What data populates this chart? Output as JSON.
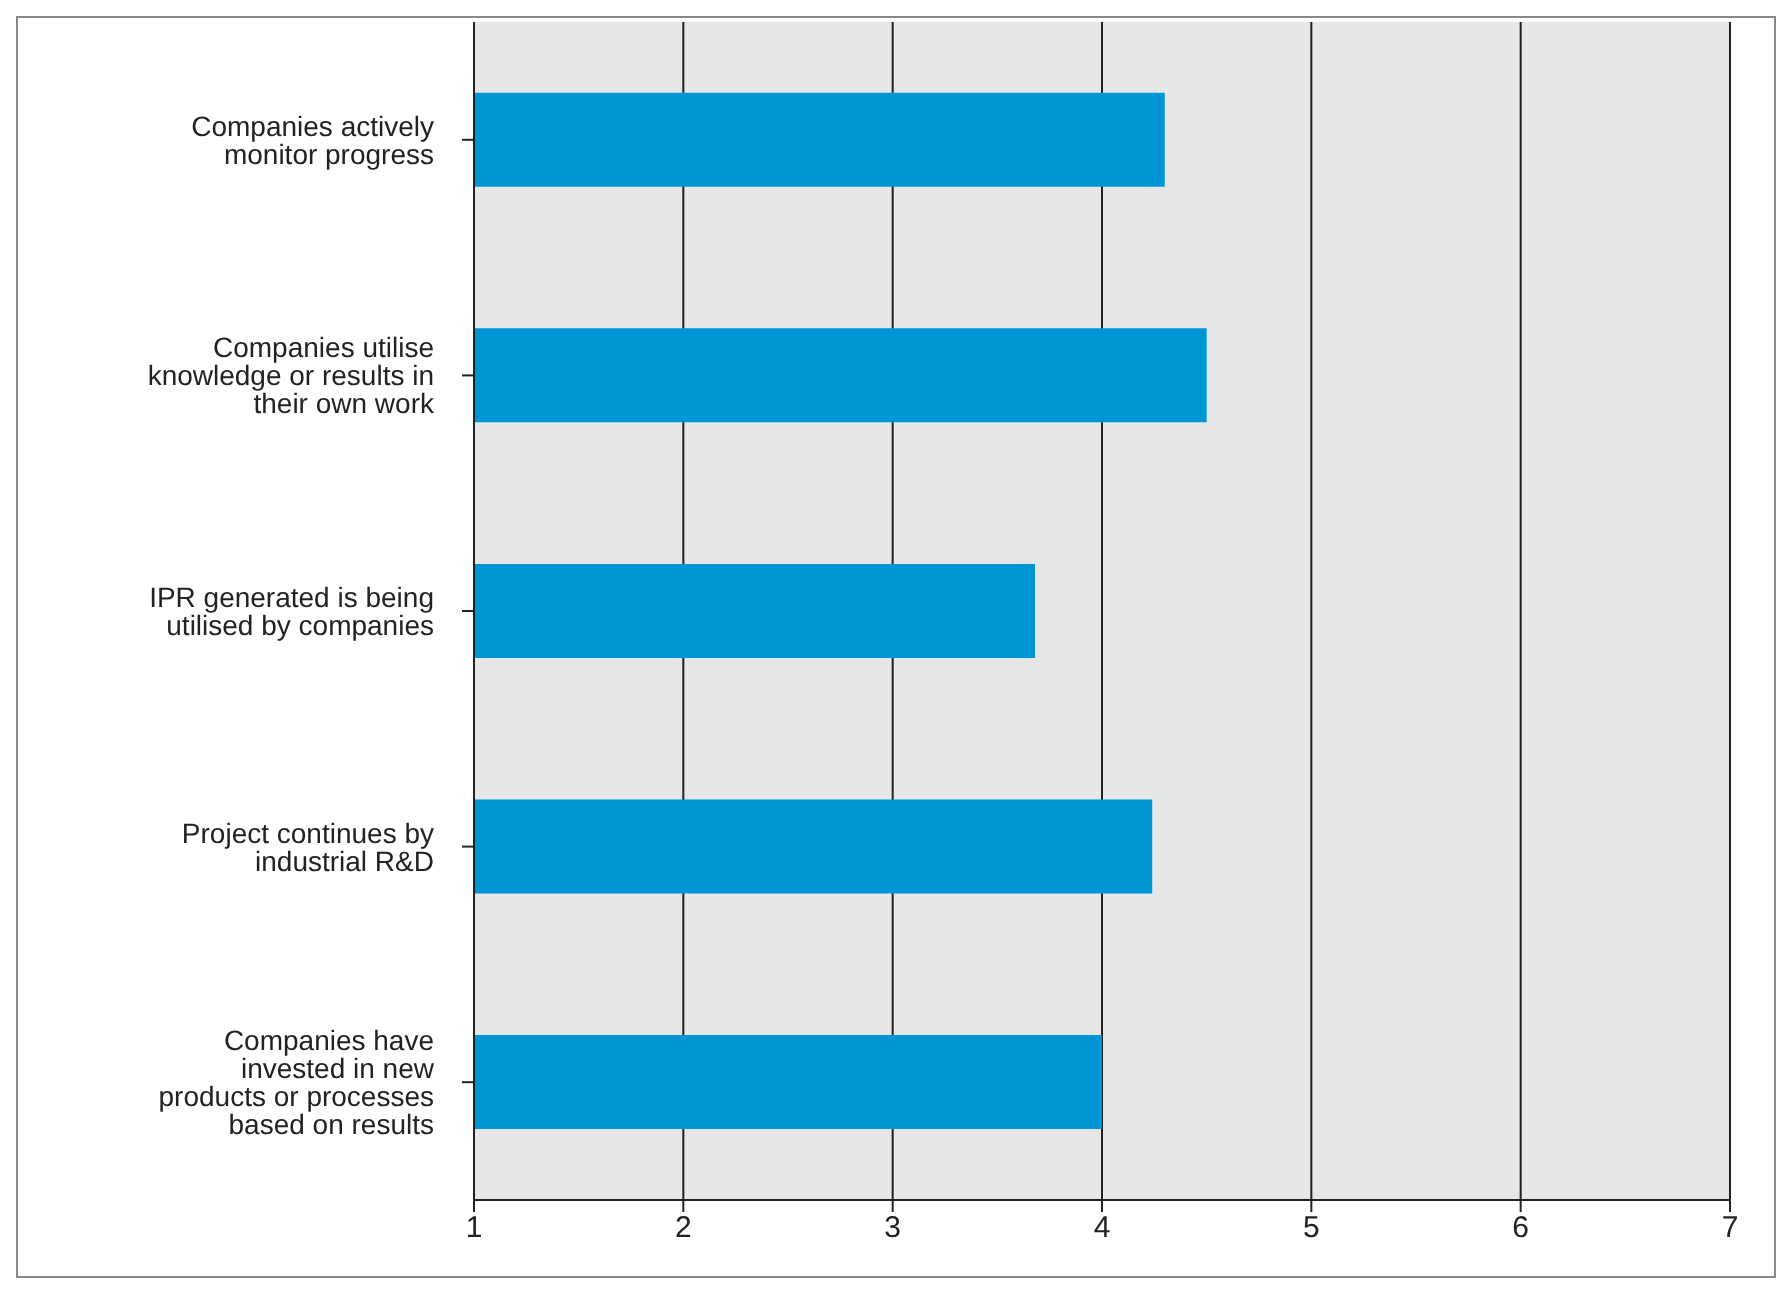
{
  "chart_data": {
    "type": "bar",
    "orientation": "horizontal",
    "categories": [
      "Companies actively monitor progress",
      "Companies utilise knowledge or results in their own work",
      "IPR generated is being utilised by companies",
      "Project continues by industrial R&D",
      "Companies have invested in new products or processes based on results"
    ],
    "values": [
      4.3,
      4.5,
      3.68,
      4.24,
      4.0
    ],
    "color": "#0096d6",
    "xlim": [
      1,
      7
    ],
    "xticks": [
      1,
      2,
      3,
      4,
      5,
      6,
      7
    ],
    "grid": "x"
  }
}
